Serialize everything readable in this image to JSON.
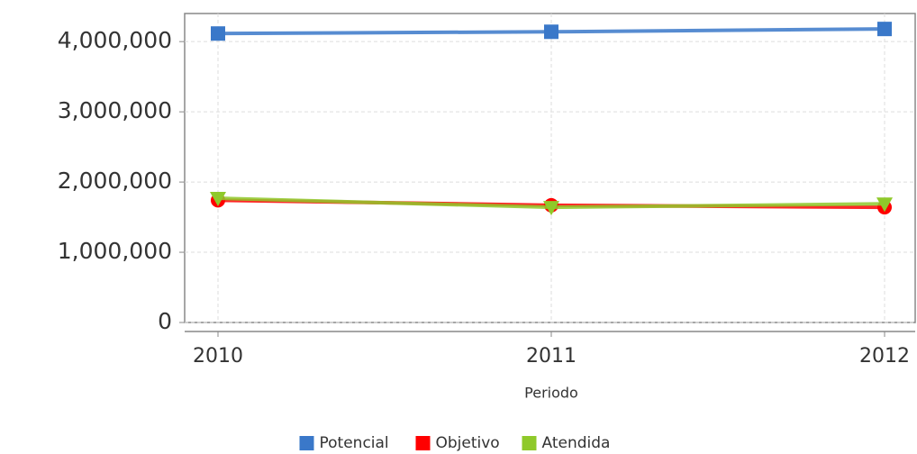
{
  "chart_data": {
    "type": "line",
    "x_label": "Periodo",
    "categories": [
      "2010",
      "2011",
      "2012"
    ],
    "series": [
      {
        "name": "Potencial",
        "color": "#3a78c9",
        "marker": "square",
        "values": [
          4115000,
          4140000,
          4180000
        ]
      },
      {
        "name": "Objetivo",
        "color": "#ff0000",
        "marker": "circle",
        "values": [
          1740000,
          1670000,
          1640000
        ]
      },
      {
        "name": "Atendida",
        "color": "#8fc92a",
        "marker": "triangle",
        "values": [
          1770000,
          1640000,
          1690000
        ]
      }
    ],
    "ylim": [
      0,
      4400000
    ],
    "yticks": [
      0,
      {
        "value": 1000000,
        "label": "1,000,000"
      },
      {
        "value": 2000000,
        "label": "2,000,000"
      },
      {
        "value": 3000000,
        "label": "3,000,000"
      },
      {
        "value": 4000000,
        "label": "4,000,000"
      }
    ],
    "grid": true,
    "legend": "bottom"
  }
}
